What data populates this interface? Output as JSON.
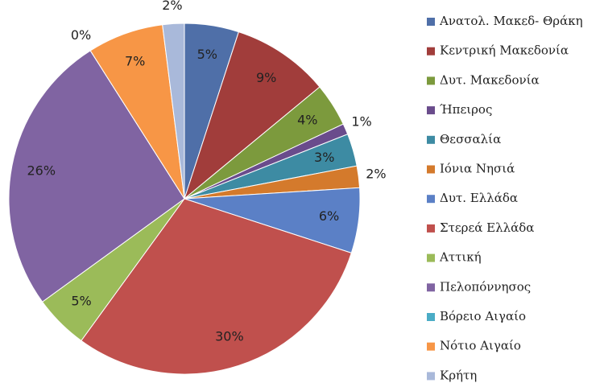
{
  "chart_data": {
    "type": "pie",
    "categories": [
      "Ανατολ. Μακεδ- Θράκη",
      "Κεντρική Μακεδονία",
      "Δυτ. Μακεδονία",
      "Ήπειρος",
      "Θεσσαλία",
      "Ιόνια Νησιά",
      "Δυτ. Ελλάδα",
      "Στερεά Ελλάδα",
      "Αττική",
      "Πελοπόννησος",
      "Βόρειο Αιγαίο",
      "Νότιο Αιγαίο",
      "Κρήτη"
    ],
    "values": [
      5,
      9,
      4,
      1,
      3,
      2,
      6,
      30,
      5,
      26,
      0,
      7,
      2
    ],
    "value_labels": [
      "5%",
      "9%",
      "4%",
      "1%",
      "3%",
      "2%",
      "6%",
      "30%",
      "5%",
      "26%",
      "0%",
      "7%",
      "2%"
    ],
    "colors": [
      "#4f6fa8",
      "#a13d3b",
      "#7c9a3d",
      "#6a4c8c",
      "#3d8ba3",
      "#d47a2c",
      "#5b80c6",
      "#c0504d",
      "#9bbb59",
      "#8064a2",
      "#4bacc6",
      "#f79646",
      "#a9b9da"
    ],
    "legend": "right"
  }
}
